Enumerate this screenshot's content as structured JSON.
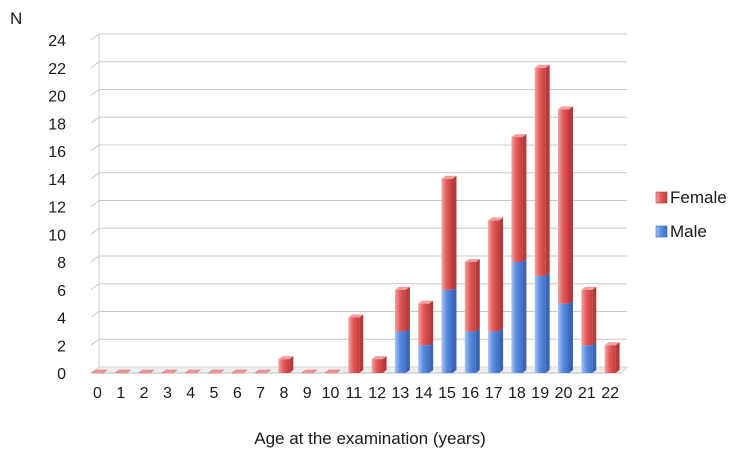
{
  "chart_data": {
    "type": "bar",
    "stacked": true,
    "categories": [
      "0",
      "1",
      "2",
      "3",
      "4",
      "5",
      "6",
      "7",
      "8",
      "9",
      "10",
      "11",
      "12",
      "13",
      "14",
      "15",
      "16",
      "17",
      "18",
      "19",
      "20",
      "21",
      "22"
    ],
    "series": [
      {
        "name": "Male",
        "values": [
          0,
          0,
          0,
          0,
          0,
          0,
          0,
          0,
          0,
          0,
          0,
          0,
          0,
          3,
          2,
          6,
          3,
          3,
          8,
          7,
          5,
          2,
          0
        ]
      },
      {
        "name": "Female",
        "values": [
          0,
          0,
          0,
          0,
          0,
          0,
          0,
          0,
          1,
          0,
          0,
          4,
          1,
          3,
          3,
          8,
          5,
          8,
          9,
          15,
          14,
          4,
          2
        ]
      }
    ],
    "xlabel": "Age at the examination (years)",
    "ylabel": "N",
    "ylim": [
      0,
      24
    ],
    "yticks": [
      0,
      2,
      4,
      6,
      8,
      10,
      12,
      14,
      16,
      18,
      20,
      22,
      24
    ],
    "grid": true,
    "legend": {
      "placement": "right",
      "entries": [
        "Female",
        "Male"
      ]
    },
    "colors": {
      "Female": "#e5595a",
      "Male": "#5f8fe0",
      "grid": "#c8c8c8",
      "floor": "#d9d9d9"
    }
  }
}
